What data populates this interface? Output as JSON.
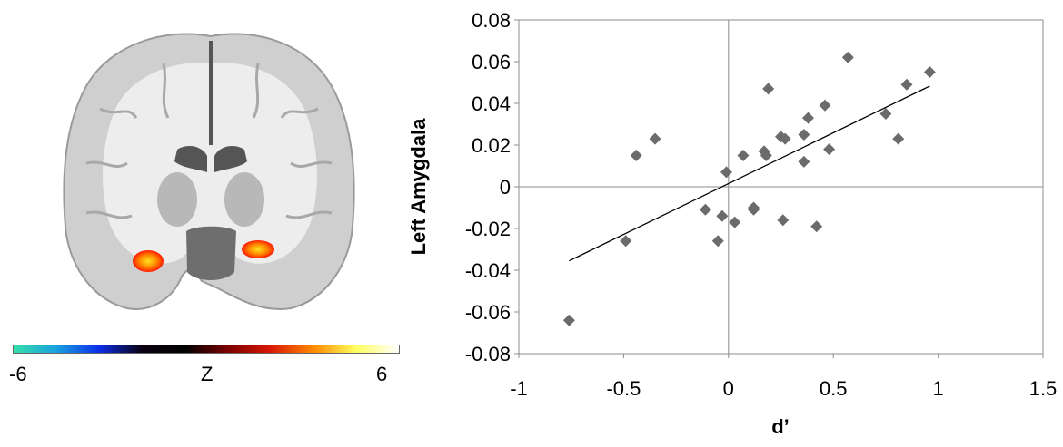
{
  "brain_panel": {
    "colorbar": {
      "min_label": "-6",
      "mid_label": "Z",
      "max_label": "6",
      "stops": [
        "#33e0a8",
        "#1aa0e0",
        "#0c2ee8",
        "#0a0010",
        "#000000",
        "#7a0000",
        "#d81800",
        "#ff8800",
        "#ffff60",
        "#ffffff"
      ]
    },
    "activation_colors": [
      "#ff1a00",
      "#ff8a00",
      "#ffe020"
    ]
  },
  "chart_data": {
    "type": "scatter",
    "title": "",
    "xlabel": "d’",
    "ylabel": "Left Amygdala",
    "xlim": [
      -1,
      1.5
    ],
    "ylim": [
      -0.08,
      0.08
    ],
    "x_ticks": [
      "-1",
      "-0.5",
      "0",
      "0.5",
      "1",
      "1.5"
    ],
    "y_ticks": [
      "0.08",
      "0.06",
      "0.04",
      "0.02",
      "0",
      "-0.02",
      "-0.04",
      "-0.06",
      "-0.08"
    ],
    "x_tick_values": [
      -1,
      -0.5,
      0,
      0.5,
      1,
      1.5
    ],
    "y_tick_values": [
      0.08,
      0.06,
      0.04,
      0.02,
      0,
      -0.02,
      -0.04,
      -0.06,
      -0.08
    ],
    "grid": false,
    "marker": "diamond",
    "marker_color": "#6b6b6b",
    "points": [
      [
        -0.76,
        -0.064
      ],
      [
        -0.49,
        -0.026
      ],
      [
        -0.44,
        0.015
      ],
      [
        -0.35,
        0.023
      ],
      [
        -0.11,
        -0.011
      ],
      [
        -0.05,
        -0.026
      ],
      [
        -0.03,
        -0.014
      ],
      [
        -0.01,
        0.007
      ],
      [
        0.03,
        -0.017
      ],
      [
        0.07,
        0.015
      ],
      [
        0.12,
        -0.011
      ],
      [
        0.12,
        -0.01
      ],
      [
        0.17,
        0.017
      ],
      [
        0.18,
        0.015
      ],
      [
        0.19,
        0.047
      ],
      [
        0.25,
        0.024
      ],
      [
        0.26,
        -0.016
      ],
      [
        0.27,
        0.023
      ],
      [
        0.36,
        0.012
      ],
      [
        0.36,
        0.025
      ],
      [
        0.38,
        0.033
      ],
      [
        0.42,
        -0.019
      ],
      [
        0.46,
        0.039
      ],
      [
        0.48,
        0.018
      ],
      [
        0.57,
        0.062
      ],
      [
        0.75,
        0.035
      ],
      [
        0.81,
        0.023
      ],
      [
        0.85,
        0.049
      ],
      [
        0.96,
        0.055
      ]
    ],
    "trendline": {
      "x": [
        -0.76,
        0.96
      ],
      "y": [
        -0.0355,
        0.0483
      ]
    }
  }
}
